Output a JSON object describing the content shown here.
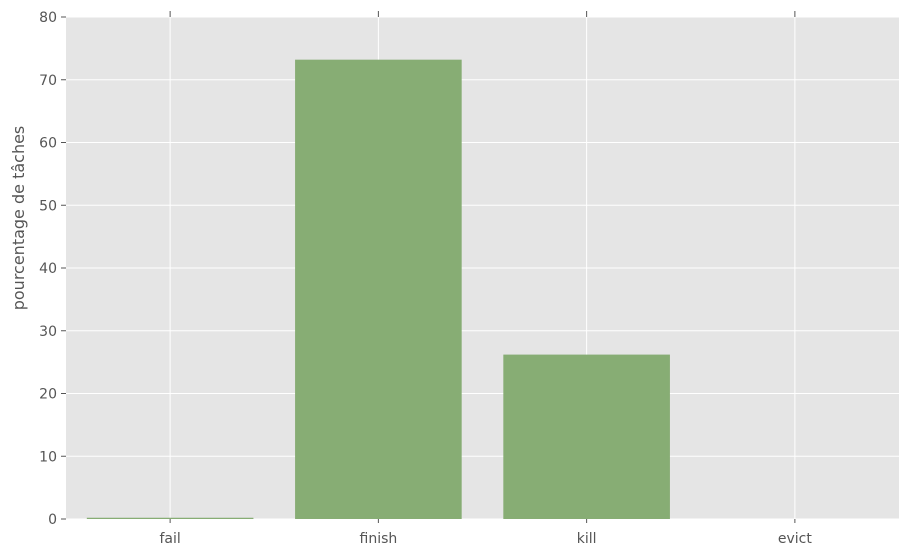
{
  "chart_data": {
    "type": "bar",
    "categories": [
      "fail",
      "finish",
      "kill",
      "evict"
    ],
    "values": [
      0.2,
      73.2,
      26.2,
      0.0
    ],
    "title": "",
    "xlabel": "",
    "ylabel": "pourcentage de tâches",
    "ylim": [
      0,
      80
    ],
    "yticks": [
      0,
      10,
      20,
      30,
      40,
      50,
      60,
      70,
      80
    ],
    "grid": true,
    "colors": {
      "bar": "#87ad74",
      "background": "#e5e5e5",
      "grid": "#ffffff",
      "tick": "#555555"
    }
  }
}
